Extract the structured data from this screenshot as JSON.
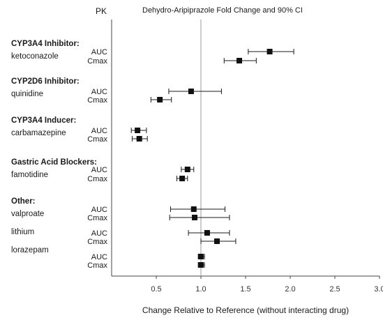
{
  "chart_data": {
    "type": "forest",
    "column_header": "PK",
    "title": "Dehydro-Aripiprazole Fold Change and 90% CI",
    "xlabel": "Change Relative to Reference (without interacting drug)",
    "xlim": [
      0,
      3.0
    ],
    "xticks": [
      "0.5",
      "1.0",
      "1.5",
      "2.0",
      "2.5",
      "3.0"
    ],
    "reference_line": 1.0,
    "groups": [
      {
        "heading": "CYP3A4 Inhibitor:",
        "drugs": [
          {
            "name": "ketoconazole",
            "rows": [
              {
                "param": "AUC",
                "est": 1.77,
                "lo": 1.53,
                "hi": 2.04
              },
              {
                "param": "Cmax",
                "est": 1.43,
                "lo": 1.26,
                "hi": 1.62
              }
            ]
          }
        ]
      },
      {
        "heading": "CYP2D6 Inhibitor:",
        "drugs": [
          {
            "name": "quinidine",
            "rows": [
              {
                "param": "AUC",
                "est": 0.89,
                "lo": 0.64,
                "hi": 1.23
              },
              {
                "param": "Cmax",
                "est": 0.54,
                "lo": 0.44,
                "hi": 0.67
              }
            ]
          }
        ]
      },
      {
        "heading": "CYP3A4 Inducer:",
        "drugs": [
          {
            "name": "carbamazepine",
            "rows": [
              {
                "param": "AUC",
                "est": 0.29,
                "lo": 0.22,
                "hi": 0.39
              },
              {
                "param": "Cmax",
                "est": 0.31,
                "lo": 0.23,
                "hi": 0.4
              }
            ]
          }
        ]
      },
      {
        "heading": "Gastric Acid Blockers:",
        "drugs": [
          {
            "name": "famotidine",
            "rows": [
              {
                "param": "AUC",
                "est": 0.85,
                "lo": 0.78,
                "hi": 0.92
              },
              {
                "param": "Cmax",
                "est": 0.79,
                "lo": 0.73,
                "hi": 0.85
              }
            ]
          }
        ]
      },
      {
        "heading": "Other:",
        "drugs": [
          {
            "name": "valproate",
            "rows": [
              {
                "param": "AUC",
                "est": 0.92,
                "lo": 0.66,
                "hi": 1.27
              },
              {
                "param": "Cmax",
                "est": 0.93,
                "lo": 0.65,
                "hi": 1.32
              }
            ]
          },
          {
            "name": "lithium",
            "rows": [
              {
                "param": "AUC",
                "est": 1.07,
                "lo": 0.86,
                "hi": 1.32
              },
              {
                "param": "Cmax",
                "est": 1.18,
                "lo": 1.0,
                "hi": 1.39
              }
            ]
          },
          {
            "name": "lorazepam",
            "rows": [
              {
                "param": "AUC",
                "est": 1.0,
                "lo": 0.97,
                "hi": 1.04
              },
              {
                "param": "Cmax",
                "est": 1.0,
                "lo": 0.97,
                "hi": 1.04
              }
            ]
          }
        ]
      }
    ]
  }
}
